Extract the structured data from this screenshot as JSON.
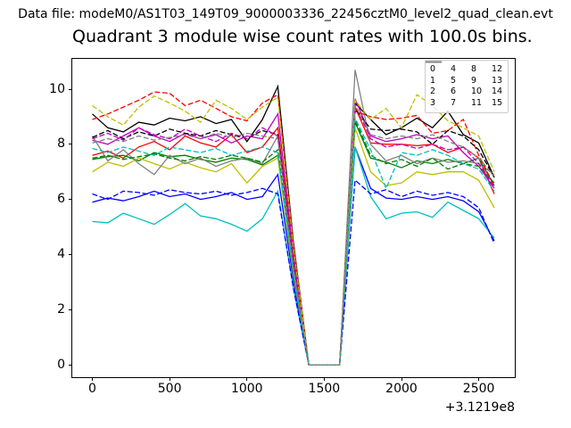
{
  "header": {
    "data_file_label": "Data file: modeM0/AS1T03_149T09_9000003336_22456cztM0_level2_quad_clean.evt"
  },
  "chart_data": {
    "type": "line",
    "title": "Quadrant 3 module wise count rates with 100.0s bins.",
    "xlabel": "",
    "ylabel": "",
    "x_offset_label": "+3.1219e8",
    "xticks": [
      0,
      500,
      1000,
      1500,
      2000,
      2500
    ],
    "yticks": [
      0,
      2,
      4,
      6,
      8,
      10
    ],
    "xlim": [
      -130,
      2733
    ],
    "ylim": [
      -0.45,
      11.1
    ],
    "grid": false,
    "legend_position": "upper right",
    "legend_columns": 4,
    "x": [
      0,
      100,
      200,
      300,
      400,
      500,
      600,
      700,
      800,
      900,
      1000,
      1100,
      1200,
      1300,
      1400,
      1500,
      1600,
      1700,
      1800,
      1900,
      2000,
      2100,
      2200,
      2300,
      2400,
      2500,
      2600
    ],
    "series": [
      {
        "name": "0",
        "color": "#ff0000",
        "linestyle": "solid",
        "values": [
          7.6,
          7.75,
          7.5,
          7.9,
          8.1,
          7.8,
          8.3,
          8.05,
          7.9,
          8.35,
          7.7,
          7.9,
          8.6,
          3.9,
          0,
          0,
          0,
          9.35,
          8.05,
          8.0,
          8.0,
          7.95,
          8.0,
          7.7,
          7.9,
          7.5,
          6.2
        ]
      },
      {
        "name": "1",
        "color": "#008000",
        "linestyle": "solid",
        "values": [
          7.45,
          7.55,
          7.6,
          7.4,
          7.7,
          7.55,
          7.6,
          7.45,
          7.35,
          7.5,
          7.45,
          7.25,
          7.6,
          3.4,
          0,
          0,
          0,
          8.8,
          7.5,
          7.35,
          7.15,
          7.4,
          7.3,
          7.45,
          7.3,
          7.5,
          6.5
        ]
      },
      {
        "name": "2",
        "color": "#0000ff",
        "linestyle": "solid",
        "values": [
          5.9,
          6.05,
          5.95,
          6.1,
          6.3,
          6.1,
          6.2,
          6.0,
          6.1,
          6.25,
          6.0,
          6.1,
          6.9,
          3.1,
          0,
          0,
          0,
          7.9,
          6.4,
          6.05,
          6.0,
          6.1,
          6.0,
          6.1,
          5.95,
          5.55,
          4.5
        ]
      },
      {
        "name": "3",
        "color": "#000000",
        "linestyle": "solid",
        "values": [
          9.1,
          8.6,
          8.45,
          8.8,
          8.7,
          8.95,
          8.85,
          9.0,
          8.75,
          8.9,
          8.1,
          8.9,
          10.1,
          4.5,
          0,
          0,
          0,
          9.5,
          8.9,
          8.35,
          8.6,
          8.95,
          8.6,
          9.2,
          8.35,
          8.05,
          6.8
        ]
      },
      {
        "name": "4",
        "color": "#bf00bf",
        "linestyle": "solid",
        "values": [
          8.15,
          8.0,
          8.3,
          8.6,
          8.3,
          8.1,
          8.4,
          8.2,
          8.35,
          8.05,
          8.3,
          8.2,
          9.1,
          4.1,
          0,
          0,
          0,
          9.65,
          8.3,
          8.1,
          8.2,
          8.35,
          8.2,
          8.3,
          7.7,
          7.2,
          6.4
        ]
      },
      {
        "name": "5",
        "color": "#00bfbf",
        "linestyle": "solid",
        "values": [
          5.2,
          5.15,
          5.5,
          5.3,
          5.1,
          5.45,
          5.85,
          5.4,
          5.3,
          5.1,
          4.85,
          5.3,
          6.3,
          2.8,
          0,
          0,
          0,
          7.9,
          6.1,
          5.3,
          5.5,
          5.55,
          5.35,
          5.9,
          5.6,
          5.3,
          4.6
        ]
      },
      {
        "name": "6",
        "color": "#bfbf00",
        "linestyle": "solid",
        "values": [
          7.0,
          7.35,
          7.2,
          7.5,
          7.3,
          7.1,
          7.35,
          7.15,
          7.0,
          7.3,
          6.6,
          7.2,
          7.5,
          3.3,
          0,
          0,
          0,
          8.6,
          7.0,
          6.5,
          6.6,
          7.0,
          6.9,
          7.0,
          7.0,
          6.7,
          5.7
        ]
      },
      {
        "name": "7",
        "color": "#808080",
        "linestyle": "solid",
        "values": [
          8.3,
          7.4,
          7.8,
          7.3,
          6.9,
          7.6,
          7.3,
          7.5,
          7.2,
          7.4,
          7.5,
          7.3,
          8.3,
          3.7,
          0,
          0,
          0,
          10.7,
          8.0,
          7.4,
          7.6,
          7.3,
          7.5,
          7.35,
          7.4,
          7.3,
          6.9
        ]
      },
      {
        "name": "8",
        "color": "#ff0000",
        "linestyle": "dashed",
        "values": [
          8.9,
          9.1,
          9.35,
          9.6,
          9.9,
          9.85,
          9.4,
          9.6,
          9.3,
          9.0,
          8.85,
          9.5,
          9.8,
          4.4,
          0,
          0,
          0,
          9.2,
          9.0,
          8.9,
          8.95,
          9.05,
          8.4,
          8.5,
          8.9,
          7.6,
          6.5
        ]
      },
      {
        "name": "9",
        "color": "#008000",
        "linestyle": "dashed",
        "values": [
          7.5,
          7.6,
          7.45,
          7.55,
          7.65,
          7.5,
          7.4,
          7.55,
          7.45,
          7.6,
          7.5,
          7.35,
          7.8,
          3.5,
          0,
          0,
          0,
          8.9,
          7.6,
          7.3,
          7.45,
          7.2,
          7.5,
          7.1,
          7.3,
          7.2,
          6.6
        ]
      },
      {
        "name": "10",
        "color": "#0000ff",
        "linestyle": "dashed",
        "values": [
          6.2,
          6.0,
          6.3,
          6.25,
          6.15,
          6.35,
          6.25,
          6.2,
          6.3,
          6.15,
          6.25,
          6.4,
          6.2,
          2.8,
          0,
          0,
          0,
          6.7,
          6.2,
          6.35,
          6.1,
          6.3,
          6.15,
          6.25,
          6.1,
          5.7,
          4.4
        ]
      },
      {
        "name": "11",
        "color": "#000000",
        "linestyle": "dashed",
        "values": [
          8.25,
          8.5,
          8.2,
          8.45,
          8.3,
          8.55,
          8.4,
          8.3,
          8.5,
          8.35,
          8.2,
          8.5,
          8.35,
          3.7,
          0,
          0,
          0,
          9.3,
          8.55,
          8.5,
          8.55,
          8.45,
          8.0,
          8.5,
          8.3,
          7.8,
          6.8
        ]
      },
      {
        "name": "12",
        "color": "#bf00bf",
        "linestyle": "dashed",
        "values": [
          8.2,
          8.4,
          8.15,
          8.6,
          8.35,
          8.2,
          8.55,
          8.3,
          8.1,
          8.4,
          8.2,
          8.6,
          8.3,
          3.7,
          0,
          0,
          0,
          9.45,
          8.2,
          7.9,
          8.0,
          7.85,
          8.0,
          7.8,
          7.9,
          7.3,
          6.45
        ]
      },
      {
        "name": "13",
        "color": "#00bfbf",
        "linestyle": "dashed",
        "values": [
          7.85,
          7.7,
          7.9,
          7.75,
          7.6,
          7.9,
          7.8,
          7.7,
          7.85,
          7.6,
          7.75,
          7.9,
          7.7,
          3.4,
          0,
          0,
          0,
          8.95,
          7.8,
          6.4,
          7.7,
          7.6,
          7.8,
          7.6,
          7.3,
          7.1,
          6.3
        ]
      },
      {
        "name": "14",
        "color": "#bfbf00",
        "linestyle": "dashed",
        "values": [
          9.4,
          9.0,
          8.7,
          9.35,
          9.75,
          9.5,
          9.2,
          8.8,
          9.6,
          9.3,
          8.9,
          9.35,
          9.7,
          4.3,
          0,
          0,
          0,
          9.6,
          8.9,
          9.3,
          8.6,
          9.8,
          9.4,
          8.85,
          8.6,
          8.3,
          7.0
        ]
      },
      {
        "name": "15",
        "color": "#808080",
        "linestyle": "dashed",
        "values": [
          8.05,
          8.2,
          8.1,
          8.3,
          8.15,
          8.25,
          8.35,
          8.2,
          8.4,
          8.25,
          8.4,
          8.3,
          8.2,
          3.6,
          0,
          0,
          0,
          9.4,
          8.35,
          8.2,
          8.3,
          8.2,
          8.35,
          8.1,
          7.9,
          7.5,
          6.85
        ]
      }
    ]
  }
}
